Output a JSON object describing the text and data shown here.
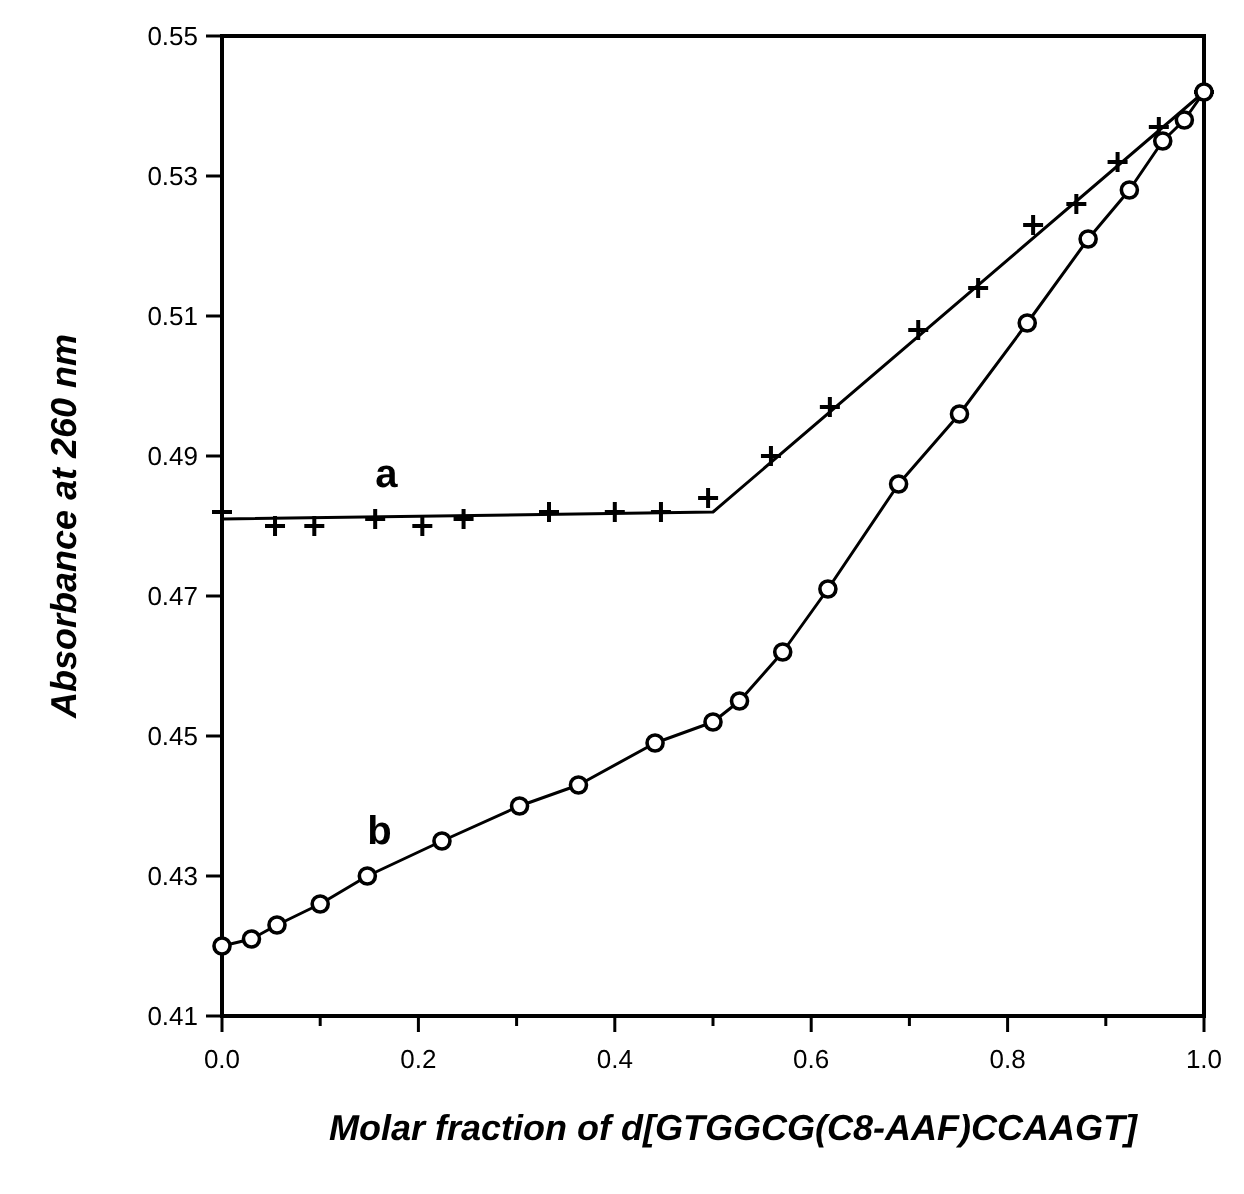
{
  "chart_data": {
    "type": "scatter",
    "xlabel": "Molar fraction of d[GTGGCG(C8-AAF)CCAAGT]",
    "ylabel": "Absorbance at 260 nm",
    "xlim": [
      0,
      1
    ],
    "ylim": [
      0.41,
      0.55
    ],
    "xticks": [
      {
        "value": 0,
        "label": "0.0"
      },
      {
        "value": 0.1,
        "label": null
      },
      {
        "value": 0.2,
        "label": "0.2"
      },
      {
        "value": 0.3,
        "label": null
      },
      {
        "value": 0.4,
        "label": "0.4"
      },
      {
        "value": 0.5,
        "label": null
      },
      {
        "value": 0.6,
        "label": "0.6"
      },
      {
        "value": 0.7,
        "label": null
      },
      {
        "value": 0.8,
        "label": "0.8"
      },
      {
        "value": 0.9,
        "label": null
      },
      {
        "value": 1,
        "label": "1.0"
      }
    ],
    "yticks": [
      0.41,
      0.43,
      0.45,
      0.47,
      0.49,
      0.51,
      0.53,
      0.55
    ],
    "grid": false,
    "series": [
      {
        "name": "a",
        "marker": "cross",
        "color": "#000000",
        "x": [
          0,
          0.054,
          0.094,
          0.156,
          0.204,
          0.246,
          0.333,
          0.4,
          0.447,
          0.495,
          0.559,
          0.619,
          0.709,
          0.77,
          0.826,
          0.87,
          0.912,
          0.954,
          1.0
        ],
        "values": [
          0.482,
          0.48,
          0.48,
          0.481,
          0.48,
          0.481,
          0.482,
          0.482,
          0.482,
          0.484,
          0.49,
          0.497,
          0.508,
          0.514,
          0.523,
          0.526,
          0.532,
          0.537,
          0.542
        ]
      },
      {
        "type": "line",
        "marker": "none",
        "line_style": "solid",
        "color": "#000000",
        "x": [
          0,
          0.5,
          1.0
        ],
        "values": [
          0.481,
          0.482,
          0.542
        ]
      },
      {
        "name": "b",
        "type": "line",
        "marker": "circle",
        "line_style": "solid",
        "color": "#000000",
        "x": [
          0,
          0.03,
          0.056,
          0.1,
          0.148,
          0.224,
          0.303,
          0.363,
          0.441,
          0.5,
          0.527,
          0.571,
          0.617,
          0.689,
          0.751,
          0.82,
          0.882,
          0.924,
          0.958,
          0.98,
          1.0
        ],
        "values": [
          0.42,
          0.421,
          0.423,
          0.426,
          0.43,
          0.435,
          0.44,
          0.443,
          0.449,
          0.452,
          0.455,
          0.462,
          0.471,
          0.486,
          0.496,
          0.509,
          0.521,
          0.528,
          0.535,
          0.538,
          0.542
        ]
      }
    ]
  }
}
